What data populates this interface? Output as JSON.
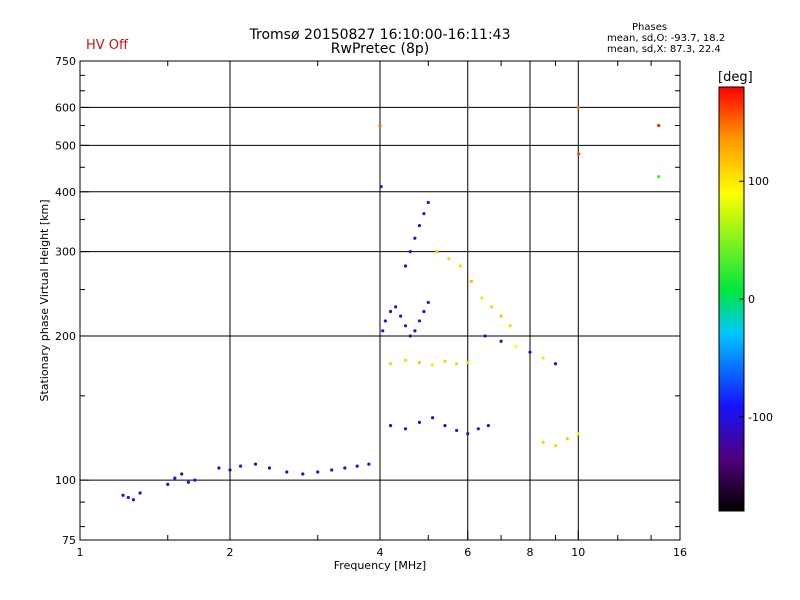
{
  "header": {
    "title": "Tromsø 20150827 16:10:00-16:11:43",
    "subtitle": "RwPretec (8p)",
    "hv_status": "HV Off",
    "hv_color": "#cc1111"
  },
  "phases": {
    "title": "Phases",
    "o_stats": "mean, sd,O: -93.7, 18.2",
    "x_stats": "mean, sd,X: 87.3, 22.4"
  },
  "colorbar": {
    "label": "[deg]",
    "ticks": [
      {
        "value": 100,
        "label": "100"
      },
      {
        "value": 0,
        "label": "0"
      },
      {
        "value": -100,
        "label": "-100"
      }
    ],
    "range": [
      -180,
      180
    ]
  },
  "chart_data": {
    "type": "scatter",
    "title": "Tromsø 20150827 16:10:00-16:11:43",
    "subtitle": "RwPretec (8p)",
    "xlabel": "Frequency [MHz]",
    "ylabel": "Stationary phase Virtual Height [km]",
    "xscale": "log",
    "yscale": "log",
    "xlim": [
      1,
      16
    ],
    "ylim": [
      75,
      750
    ],
    "xticks": [
      1,
      2,
      4,
      6,
      8,
      10,
      16
    ],
    "xtick_labels": [
      "1",
      "2",
      "4",
      "6",
      "8",
      "10",
      "16"
    ],
    "yticks": [
      75,
      100,
      200,
      300,
      400,
      500,
      600,
      750
    ],
    "ytick_labels": [
      "75",
      "100",
      "200",
      "300",
      "400",
      "500",
      "600",
      "750"
    ],
    "grid_x": [
      2,
      4,
      6,
      8,
      10
    ],
    "grid_y": [
      100,
      200,
      300,
      400,
      500,
      600
    ],
    "color_quantity": "phase (deg)",
    "series": [
      {
        "x": [
          1.22,
          1.25,
          1.28,
          1.32
        ],
        "y": [
          93,
          92,
          91,
          94
        ],
        "phase": [
          -100,
          -90,
          -95,
          -105
        ]
      },
      {
        "x": [
          1.5,
          1.55,
          1.6,
          1.65,
          1.7
        ],
        "y": [
          98,
          101,
          103,
          99,
          100
        ],
        "phase": [
          -100,
          -90,
          -110,
          -95,
          -100
        ]
      },
      {
        "x": [
          1.9,
          2.0,
          2.1,
          2.25,
          2.4,
          2.6,
          2.8,
          3.0,
          3.2,
          3.4,
          3.6,
          3.8
        ],
        "y": [
          106,
          105,
          107,
          108,
          106,
          104,
          103,
          104,
          105,
          106,
          107,
          108
        ],
        "phase": [
          -95,
          -100,
          -90,
          -105,
          -100,
          -95,
          -110,
          -100,
          -90,
          -95,
          -100,
          -105
        ]
      },
      {
        "x": [
          4.05,
          4.1,
          4.2,
          4.3,
          4.4,
          4.5,
          4.6,
          4.7,
          4.8,
          4.9,
          5.0
        ],
        "y": [
          205,
          215,
          225,
          230,
          220,
          210,
          200,
          205,
          215,
          225,
          235
        ],
        "phase": [
          -95,
          -100,
          -105,
          -90,
          -100,
          -95,
          -110,
          -100,
          -95,
          -105,
          -100
        ]
      },
      {
        "x": [
          4.5,
          4.6,
          4.7,
          4.8,
          4.9,
          5.0,
          5.2
        ],
        "y": [
          280,
          300,
          320,
          340,
          360,
          380,
          300
        ],
        "phase": [
          -100,
          -95,
          -105,
          -90,
          -100,
          -95,
          110
        ]
      },
      {
        "x": [
          4.2,
          4.5,
          4.8,
          5.1,
          5.4,
          5.7,
          6.0
        ],
        "y": [
          175,
          178,
          176,
          174,
          177,
          175,
          176
        ],
        "phase": [
          110,
          105,
          115,
          100,
          110,
          108,
          112
        ]
      },
      {
        "x": [
          4.2,
          4.5,
          4.8,
          5.1,
          5.4,
          5.7,
          6.0,
          6.3,
          6.6
        ],
        "y": [
          130,
          128,
          132,
          135,
          130,
          127,
          125,
          128,
          130
        ],
        "phase": [
          -95,
          -100,
          -90,
          -105,
          -100,
          -95,
          -110,
          -100,
          -95
        ]
      },
      {
        "x": [
          5.2,
          5.5,
          5.8,
          6.1,
          6.4,
          6.7,
          7.0,
          7.3
        ],
        "y": [
          300,
          290,
          280,
          260,
          240,
          230,
          220,
          210
        ],
        "phase": [
          115,
          110,
          105,
          120,
          100,
          110,
          115,
          105
        ]
      },
      {
        "x": [
          6.5,
          7.0,
          7.5,
          8.0,
          8.5,
          9.0
        ],
        "y": [
          200,
          195,
          190,
          185,
          180,
          175
        ],
        "phase": [
          -95,
          -100,
          90,
          -105,
          100,
          -95
        ]
      },
      {
        "x": [
          8.5,
          9.0,
          9.5,
          10.0
        ],
        "y": [
          120,
          118,
          122,
          125
        ],
        "phase": [
          110,
          105,
          115,
          100
        ]
      },
      {
        "x": [
          4.0,
          4.02,
          10.0,
          10.02,
          14.5,
          14.5
        ],
        "y": [
          550,
          410,
          600,
          480,
          550,
          430
        ],
        "phase": [
          150,
          -100,
          150,
          160,
          170,
          30
        ]
      }
    ]
  }
}
